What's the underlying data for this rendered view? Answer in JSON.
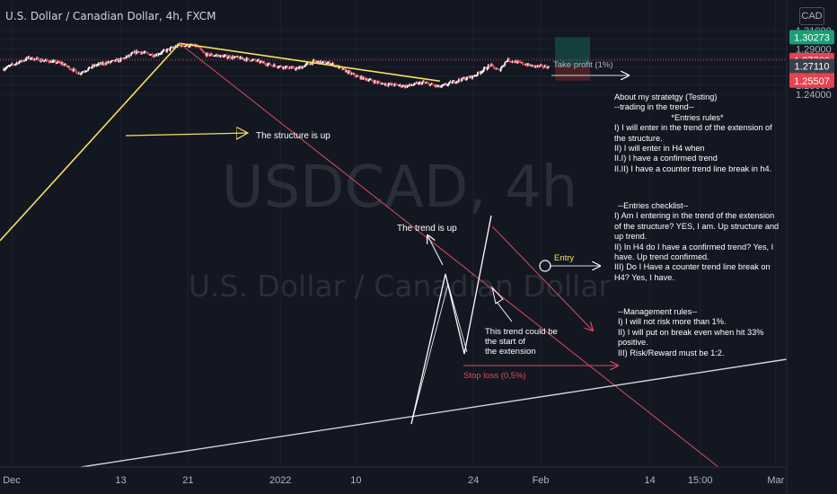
{
  "header": {
    "title": "U.S. Dollar / Canadian Dollar, 4h, FXCM",
    "currency": "CAD"
  },
  "watermark": {
    "symbol": "USDCAD, 4h",
    "name": "U.S. Dollar / Canadian Dollar"
  },
  "colors": {
    "background": "#131722",
    "up": "#ffffff",
    "down": "#e24a5c",
    "yellow": "#f6e05a",
    "take_profit_zone": "#16403d",
    "stop_loss_zone": "#4a1f26",
    "last_price": "#e8424f",
    "take_profit_tag": "#1b9e73"
  },
  "chart_data": {
    "type": "candlestick",
    "y_range": [
      1.2385,
      1.3155
    ],
    "y_ticks": [
      "1.31000",
      "1.30000",
      "1.29000",
      "1.28000",
      "1.27000",
      "1.26000",
      "1.25000",
      "1.24000"
    ],
    "x_ticks": [
      {
        "label": "Dec",
        "date": "2021-11-30"
      },
      {
        "label": "13",
        "date": "2021-12-13"
      },
      {
        "label": "21",
        "date": "2021-12-21"
      },
      {
        "label": "2022",
        "date": "2022-01-01"
      },
      {
        "label": "10",
        "date": "2022-01-10"
      },
      {
        "label": "24",
        "date": "2022-01-24"
      },
      {
        "label": "Feb",
        "date": "2022-02-01"
      },
      {
        "label": "14",
        "date": "2022-02-14"
      },
      {
        "label": "15:00",
        "date": "2022-02-20"
      },
      {
        "label": "Mar",
        "date": "2022-03-01"
      }
    ],
    "price_path": [
      [
        "2021-11-29",
        1.268
      ],
      [
        "2021-12-02",
        1.28
      ],
      [
        "2021-12-06",
        1.274
      ],
      [
        "2021-12-08",
        1.263
      ],
      [
        "2021-12-10",
        1.272
      ],
      [
        "2021-12-13",
        1.278
      ],
      [
        "2021-12-15",
        1.287
      ],
      [
        "2021-12-17",
        1.283
      ],
      [
        "2021-12-20",
        1.294
      ],
      [
        "2021-12-22",
        1.293
      ],
      [
        "2021-12-23",
        1.284
      ],
      [
        "2021-12-27",
        1.28
      ],
      [
        "2021-12-29",
        1.277
      ],
      [
        "2021-12-31",
        1.272
      ],
      [
        "2022-01-03",
        1.268
      ],
      [
        "2022-01-05",
        1.276
      ],
      [
        "2022-01-07",
        1.274
      ],
      [
        "2022-01-10",
        1.26
      ],
      [
        "2022-01-13",
        1.252
      ],
      [
        "2022-01-16",
        1.249
      ],
      [
        "2022-01-18",
        1.253
      ],
      [
        "2022-01-20",
        1.248
      ],
      [
        "2022-01-22",
        1.255
      ],
      [
        "2022-01-24",
        1.26
      ],
      [
        "2022-01-26",
        1.272
      ],
      [
        "2022-01-27",
        1.266
      ],
      [
        "2022-01-28",
        1.278
      ],
      [
        "2022-01-31",
        1.271
      ],
      [
        "2022-02-02",
        1.27
      ],
      [
        "2022-02-04",
        1.2715
      ],
      [
        "2022-02-06",
        1.2776
      ]
    ],
    "price_labels": [
      {
        "value": 1.30273,
        "text": "1.30273",
        "kind": "take-profit"
      },
      {
        "value": 1.2776,
        "text": "1.27760",
        "kind": "last"
      },
      {
        "value": 1.2711,
        "text": "1.27110",
        "kind": "entry"
      },
      {
        "value": 1.25507,
        "text": "1.25507",
        "kind": "stop-loss"
      }
    ],
    "countdown": "01:36:39",
    "annotations": {
      "structure": "The structure is up",
      "trend": "The trend is up",
      "extension": "This trend could be the start of the extension",
      "take_profit": "Take profit (1%)",
      "entry": "Entry",
      "stop_loss": "Stop loss (0,5%)"
    }
  },
  "notes": {
    "strategy": {
      "title": "About my stratetgy (Testing)",
      "subtitle": "--trading in the trend--",
      "heading": "*Entries rules*",
      "lines": [
        "I) I will enter in the trend of the extension of the structure.",
        "II) I will enter in H4 when",
        "II.I) I have a confirmed trend",
        "II.II) I have a counter trend line break in h4."
      ]
    },
    "checklist": {
      "title": "--Entries checklist--",
      "lines": [
        "I) Am I entering in the trend of the extension of the structure? YES, I am. Up structure and up trend.",
        "II) In H4 do I have a confirmed trend? Yes, I have. Up trend confirmed.",
        "III) Do I Have a counter trend line break on H4? Yes, I have."
      ]
    },
    "management": {
      "title": "--Management rules--",
      "lines": [
        "I) I will not risk more than 1%.",
        "II) I will put on break even when hit 33% positive.",
        "III) Risk/Reward must be 1:2."
      ]
    }
  }
}
